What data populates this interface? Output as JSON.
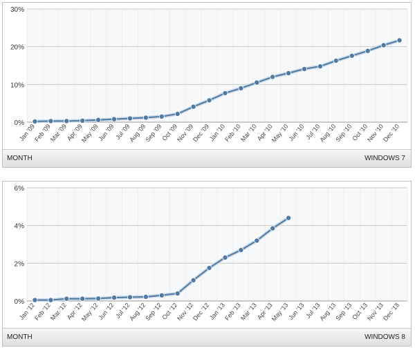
{
  "chart_data": [
    {
      "type": "line",
      "footer_left": "MONTH",
      "footer_right": "WINDOWS 7",
      "y_ticks": [
        "0%",
        "10%",
        "20%",
        "30%"
      ],
      "ylim": [
        0,
        30
      ],
      "x": [
        "Jan '09",
        "Feb '09",
        "Mar '09",
        "Apr '09",
        "May '09",
        "Jun '09",
        "Jul '09",
        "Aug '09",
        "Sep '09",
        "Oct '09",
        "Nov '09",
        "Dec '09",
        "Jan '10",
        "Feb '10",
        "Mar '10",
        "Apr '10",
        "May '10",
        "Jun '10",
        "Jul '10",
        "Aug '10",
        "Sep '10",
        "Oct '10",
        "Nov '10",
        "Dec '10"
      ],
      "values": [
        0.2,
        0.3,
        0.3,
        0.4,
        0.6,
        0.8,
        1.0,
        1.2,
        1.5,
        2.2,
        4.1,
        5.8,
        7.7,
        9.0,
        10.5,
        12.0,
        13.0,
        14.1,
        14.8,
        16.3,
        17.6,
        18.9,
        20.4,
        21.7
      ],
      "color": "#4f7aa3",
      "grid": true
    },
    {
      "type": "line",
      "footer_left": "MONTH",
      "footer_right": "WINDOWS 8",
      "y_ticks": [
        "0%",
        "2%",
        "4%",
        "6%"
      ],
      "ylim": [
        0,
        6
      ],
      "x": [
        "Jan '12",
        "Feb '12",
        "Mar '12",
        "Apr '12",
        "May '12",
        "Jun '12",
        "Jul '12",
        "Aug '12",
        "Sep '12",
        "Oct '12",
        "Nov '12",
        "Dec '12",
        "Jan '13",
        "Feb '13",
        "Mar '13",
        "Apr '13",
        "May '13",
        "Jun '13",
        "Jul '13",
        "Aug '13",
        "Sep '13",
        "Oct '13",
        "Nov '13",
        "Dec '13"
      ],
      "values": [
        0.05,
        0.05,
        0.12,
        0.12,
        0.13,
        0.18,
        0.2,
        0.22,
        0.3,
        0.4,
        1.1,
        1.75,
        2.3,
        2.7,
        3.2,
        3.85,
        4.4,
        null,
        null,
        null,
        null,
        null,
        null,
        null
      ],
      "color": "#4f7aa3",
      "grid": true
    }
  ]
}
